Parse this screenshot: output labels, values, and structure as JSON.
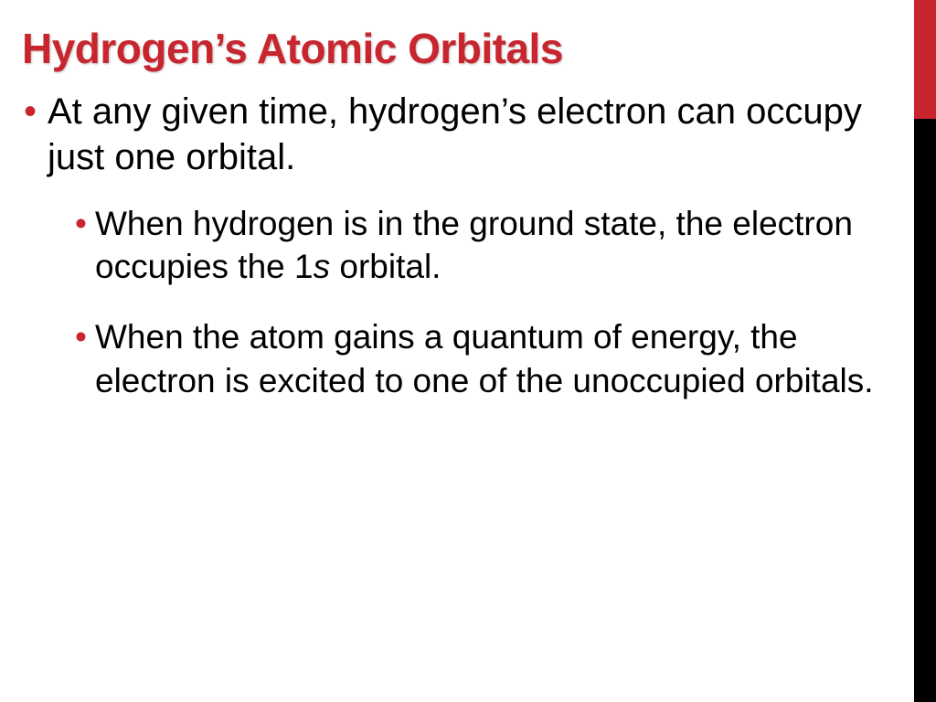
{
  "colors": {
    "title": "#c8252f",
    "bullet_lvl1": "#c8252f",
    "bullet_lvl2": "#c8252f",
    "accent_top": "#c8252f",
    "accent_bottom": "#000000",
    "body_text": "#000000",
    "background": "#ffffff"
  },
  "typography": {
    "title_fontsize": 46,
    "title_weight": 900,
    "lvl1_fontsize": 40,
    "lvl2_fontsize": 37
  },
  "title": "Hydrogen’s Atomic Orbitals",
  "bullets": {
    "lvl1_0": "At any given time, hydrogen’s electron can occupy just one orbital.",
    "lvl2_0_pre": "When hydrogen is in the ground state, the electron occupies the 1",
    "lvl2_0_ital": "s",
    "lvl2_0_post": " orbital.",
    "lvl2_1": "When the atom gains a quantum of energy, the electron is excited to one of the unoccupied orbitals."
  }
}
